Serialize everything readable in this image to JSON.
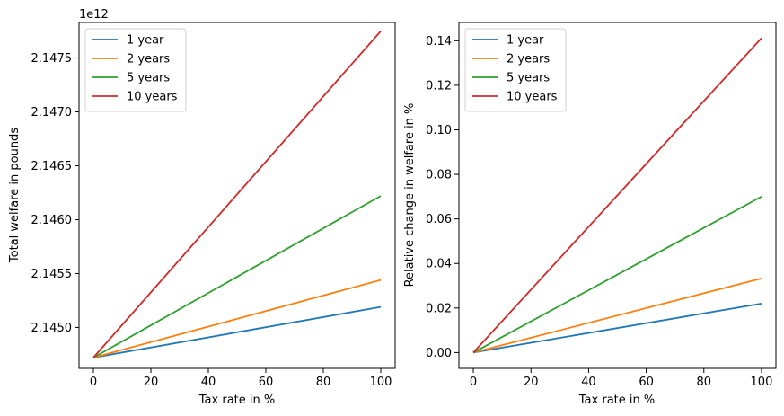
{
  "chart_data": [
    {
      "type": "line",
      "xlabel": "Tax rate in %",
      "ylabel": "Total welfare in pounds",
      "offset_label": "1e12",
      "xlim": [
        -5,
        105
      ],
      "ylim": [
        2.14462,
        2.14783
      ],
      "xticks": [
        0,
        20,
        40,
        60,
        80,
        100
      ],
      "xtick_labels": [
        "0",
        "20",
        "40",
        "60",
        "80",
        "100"
      ],
      "yticks": [
        2.145,
        2.1455,
        2.146,
        2.1465,
        2.147,
        2.1475
      ],
      "ytick_labels": [
        "2.1450",
        "2.1455",
        "2.1460",
        "2.1465",
        "2.1470",
        "2.1475"
      ],
      "legend_position": "top-left",
      "grid": false,
      "x": [
        0,
        100
      ],
      "series": [
        {
          "name": "1 year",
          "color": "#1f77b4",
          "values": [
            2.14472,
            2.14519
          ]
        },
        {
          "name": "2 years",
          "color": "#ff7f0e",
          "values": [
            2.14472,
            2.14544
          ]
        },
        {
          "name": "5 years",
          "color": "#2ca02c",
          "values": [
            2.14472,
            2.14622
          ]
        },
        {
          "name": "10 years",
          "color": "#d62728",
          "values": [
            2.14472,
            2.14775
          ]
        }
      ]
    },
    {
      "type": "line",
      "xlabel": "Tax rate in %",
      "ylabel": "Relative change in welfare in %",
      "xlim": [
        -5,
        105
      ],
      "ylim": [
        -0.0071,
        0.1482
      ],
      "xticks": [
        0,
        20,
        40,
        60,
        80,
        100
      ],
      "xtick_labels": [
        "0",
        "20",
        "40",
        "60",
        "80",
        "100"
      ],
      "yticks": [
        0.0,
        0.02,
        0.04,
        0.06,
        0.08,
        0.1,
        0.12,
        0.14
      ],
      "ytick_labels": [
        "0.00",
        "0.02",
        "0.04",
        "0.06",
        "0.08",
        "0.10",
        "0.12",
        "0.14"
      ],
      "legend_position": "top-left",
      "grid": false,
      "x": [
        0,
        100
      ],
      "series": [
        {
          "name": "1 year",
          "color": "#1f77b4",
          "values": [
            0.0,
            0.022
          ]
        },
        {
          "name": "2 years",
          "color": "#ff7f0e",
          "values": [
            0.0,
            0.0333
          ]
        },
        {
          "name": "5 years",
          "color": "#2ca02c",
          "values": [
            0.0,
            0.07
          ]
        },
        {
          "name": "10 years",
          "color": "#d62728",
          "values": [
            0.0,
            0.1412
          ]
        }
      ]
    }
  ]
}
